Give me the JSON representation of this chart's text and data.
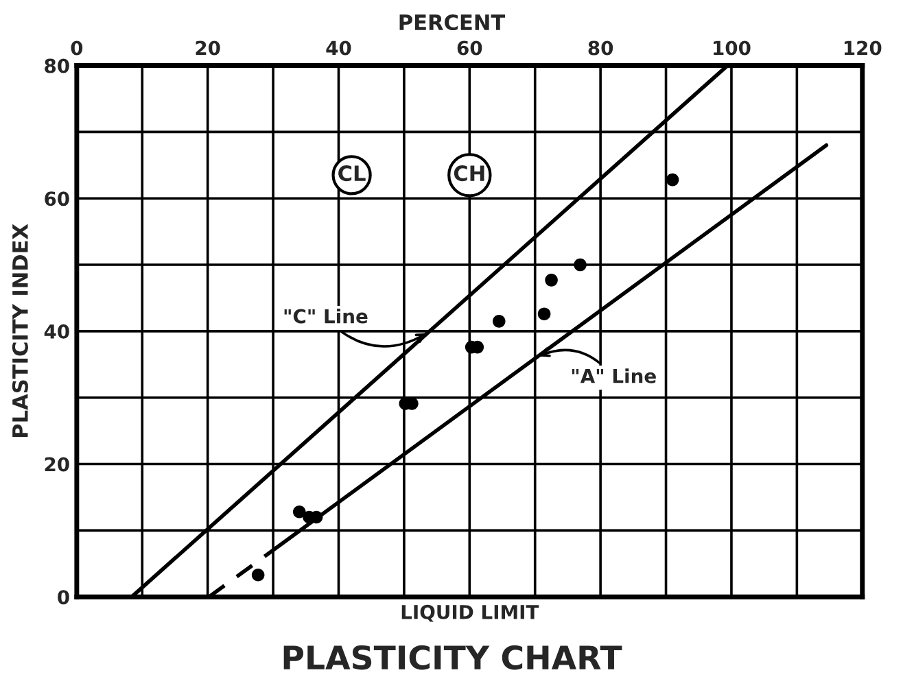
{
  "chart_data": {
    "type": "scatter",
    "title": "PLASTICITY CHART",
    "xlabel": "LIQUID LIMIT",
    "ylabel": "PLASTICITY INDEX",
    "xlim": [
      0,
      120
    ],
    "ylim": [
      0,
      80
    ],
    "xticks": [
      0,
      20,
      40,
      60,
      80,
      100,
      120
    ],
    "yticks": [
      0,
      20,
      40,
      60,
      80
    ],
    "grid": true,
    "tick_labels": "xy_top",
    "series": [
      {
        "color": "#000000",
        "marker": "circle",
        "x": [
          27.7,
          34.0,
          35.5,
          36.6,
          50.2,
          51.2,
          60.3,
          61.2,
          64.5,
          71.4,
          72.5,
          76.9,
          91.0
        ],
        "values": [
          3.3,
          12.8,
          12.0,
          12.0,
          29.1,
          29.1,
          37.6,
          37.6,
          41.5,
          42.6,
          47.7,
          50.0,
          62.8
        ]
      },
      {
        "type": "line",
        "color": "#000000",
        "line_style": "solid",
        "x": [
          8.4,
          99.4
        ],
        "values": [
          0,
          80
        ]
      },
      {
        "type": "line",
        "color": "#000000",
        "line_style": "dashed",
        "x": [
          20.2,
          29.4
        ],
        "values": [
          0,
          6.6
        ]
      },
      {
        "type": "line",
        "color": "#000000",
        "line_style": "solid",
        "x": [
          29.4,
          114.5
        ],
        "values": [
          6.6,
          68
        ]
      }
    ],
    "annotations": [
      "PERCENT",
      {
        "text": "CL",
        "x": 42,
        "y": 63.5
      },
      {
        "text": "CH",
        "x": 60,
        "y": 63.5
      },
      {
        "text": "\"C\" Line",
        "x": 54,
        "y": 40
      },
      {
        "text": "\"A\" Line",
        "x": 70,
        "y": 36
      }
    ]
  }
}
